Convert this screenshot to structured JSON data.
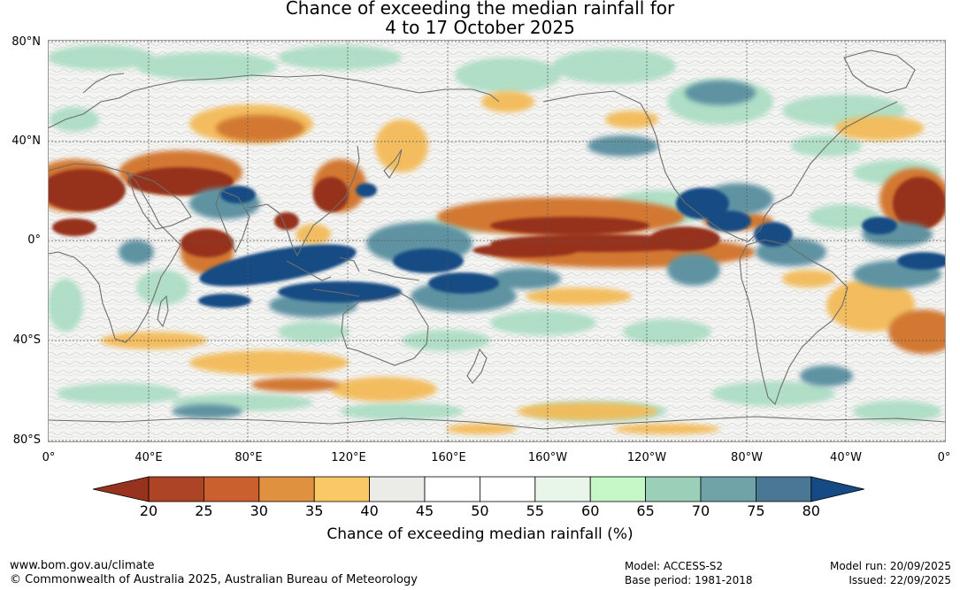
{
  "title": {
    "line1": "Chance of exceeding the median rainfall for",
    "line2": "4 to 17 October 2025"
  },
  "axes": {
    "lat_labels": [
      "80°N",
      "40°N",
      "0°",
      "40°S",
      "80°S"
    ],
    "lon_labels": [
      "0°",
      "40°E",
      "80°E",
      "120°E",
      "160°E",
      "160°W",
      "120°W",
      "80°W",
      "40°W",
      "0°"
    ]
  },
  "colorbar": {
    "label": "Chance of exceeding median rainfall (%)",
    "ticks": [
      "20",
      "25",
      "30",
      "35",
      "40",
      "45",
      "50",
      "55",
      "60",
      "65",
      "70",
      "75",
      "80"
    ],
    "low_extend_color": "#96321e",
    "high_extend_color": "#154a85",
    "colors": [
      "#ad4425",
      "#c9602e",
      "#e0913f",
      "#fac865",
      "#ebebe8",
      "#ffffff",
      "#ffffff",
      "#e8f5e8",
      "#c6f7c6",
      "#9ccfb8",
      "#6fa3a8",
      "#4a7894"
    ]
  },
  "map": {
    "type": "map",
    "projection": "equirectangular",
    "lon_range": [
      0,
      360
    ],
    "lat_range": [
      -80,
      80
    ],
    "colors": {
      "very_dry": "#96321e",
      "dry": "#d27833",
      "moderate_dry": "#f3bb58",
      "neutral": "#e6e6e3",
      "moderate_wet": "#a9dcc2",
      "wet": "#5f93a2",
      "very_wet": "#174c84",
      "coastline": "#6e6e6e",
      "grid": "#555555"
    }
  },
  "footer": {
    "url": "www.bom.gov.au/climate",
    "copyright": "© Commonwealth of Australia 2025, Australian Bureau of Meteorology",
    "model": "Model: ACCESS-S2",
    "base_period": "Base period: 1981-2018",
    "model_run": "Model run: 20/09/2025",
    "issued": "Issued: 22/09/2025"
  }
}
